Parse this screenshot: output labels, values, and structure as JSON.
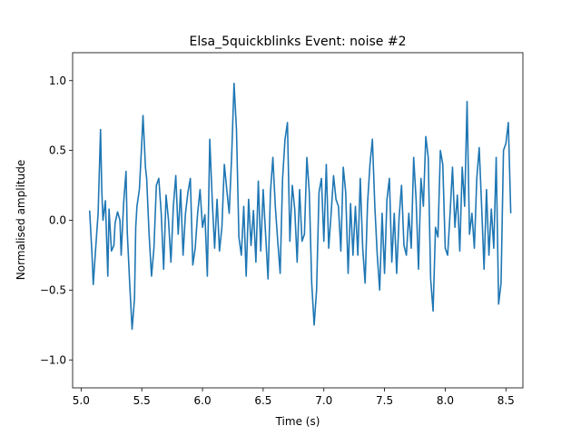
{
  "chart_data": {
    "type": "line",
    "title": "Elsa_5quickblinks Event: noise #2",
    "xlabel": "Time (s)",
    "ylabel": "Normalised amplitude",
    "xlim": [
      4.93,
      8.64
    ],
    "ylim": [
      -1.2,
      1.2
    ],
    "xticks": [
      5.0,
      5.5,
      6.0,
      6.5,
      7.0,
      7.5,
      8.0,
      8.5
    ],
    "xtick_labels": [
      "5.0",
      "5.5",
      "6.0",
      "6.5",
      "7.0",
      "7.5",
      "8.0",
      "8.5"
    ],
    "yticks": [
      -1.0,
      -0.5,
      0.0,
      0.5,
      1.0
    ],
    "ytick_labels": [
      "−1.0",
      "−0.5",
      "0.0",
      "0.5",
      "1.0"
    ],
    "grid": false,
    "series": [
      {
        "color": "#1f77b4",
        "x": [
          5.07,
          5.09,
          5.1,
          5.12,
          5.14,
          5.16,
          5.17,
          5.18,
          5.2,
          5.22,
          5.23,
          5.25,
          5.27,
          5.28,
          5.3,
          5.32,
          5.33,
          5.35,
          5.37,
          5.38,
          5.4,
          5.42,
          5.44,
          5.45,
          5.46,
          5.48,
          5.5,
          5.51,
          5.53,
          5.54,
          5.56,
          5.58,
          5.6,
          5.62,
          5.64,
          5.66,
          5.68,
          5.7,
          5.72,
          5.74,
          5.76,
          5.78,
          5.8,
          5.82,
          5.84,
          5.86,
          5.88,
          5.9,
          5.92,
          5.94,
          5.96,
          5.98,
          6.0,
          6.02,
          6.04,
          6.06,
          6.08,
          6.1,
          6.12,
          6.14,
          6.16,
          6.18,
          6.2,
          6.22,
          6.24,
          6.26,
          6.28,
          6.3,
          6.32,
          6.34,
          6.36,
          6.38,
          6.4,
          6.42,
          6.44,
          6.46,
          6.48,
          6.5,
          6.52,
          6.54,
          6.56,
          6.58,
          6.6,
          6.62,
          6.64,
          6.66,
          6.68,
          6.7,
          6.72,
          6.74,
          6.76,
          6.78,
          6.8,
          6.82,
          6.84,
          6.86,
          6.88,
          6.9,
          6.92,
          6.94,
          6.96,
          6.98,
          7.0,
          7.02,
          7.04,
          7.06,
          7.08,
          7.1,
          7.12,
          7.14,
          7.16,
          7.18,
          7.2,
          7.22,
          7.24,
          7.26,
          7.28,
          7.3,
          7.32,
          7.34,
          7.36,
          7.38,
          7.4,
          7.42,
          7.44,
          7.46,
          7.48,
          7.5,
          7.52,
          7.54,
          7.56,
          7.58,
          7.6,
          7.62,
          7.64,
          7.66,
          7.68,
          7.7,
          7.72,
          7.74,
          7.76,
          7.78,
          7.8,
          7.82,
          7.84,
          7.86,
          7.88,
          7.9,
          7.92,
          7.94,
          7.96,
          7.98,
          8.0,
          8.02,
          8.04,
          8.06,
          8.08,
          8.1,
          8.12,
          8.14,
          8.16,
          8.18,
          8.2,
          8.22,
          8.24,
          8.26,
          8.28,
          8.3,
          8.32,
          8.34,
          8.36,
          8.38,
          8.4,
          8.42,
          8.44,
          8.46,
          8.48,
          8.5,
          8.52,
          8.54
        ],
        "y": [
          0.07,
          -0.25,
          -0.46,
          -0.2,
          0.05,
          0.65,
          0.22,
          0.0,
          0.14,
          -0.4,
          0.08,
          -0.22,
          -0.18,
          -0.02,
          0.06,
          0.0,
          -0.25,
          0.12,
          0.35,
          -0.08,
          -0.45,
          -0.78,
          -0.56,
          -0.05,
          0.1,
          0.22,
          0.56,
          0.75,
          0.38,
          0.3,
          -0.1,
          -0.4,
          -0.2,
          0.25,
          0.3,
          0.05,
          -0.35,
          0.18,
          0.0,
          -0.3,
          0.1,
          0.32,
          -0.1,
          0.22,
          -0.25,
          0.05,
          0.2,
          0.3,
          -0.32,
          -0.2,
          0.05,
          0.22,
          -0.05,
          0.04,
          -0.4,
          0.58,
          0.15,
          -0.2,
          0.15,
          -0.22,
          -0.05,
          0.4,
          0.22,
          0.05,
          0.45,
          0.98,
          0.65,
          -0.12,
          -0.25,
          0.1,
          -0.4,
          0.15,
          -0.18,
          0.07,
          -0.3,
          0.28,
          -0.22,
          0.22,
          -0.1,
          -0.42,
          0.2,
          0.45,
          0.1,
          -0.15,
          -0.38,
          0.3,
          0.58,
          0.7,
          -0.15,
          0.25,
          0.08,
          -0.3,
          0.22,
          -0.15,
          -0.1,
          0.45,
          0.2,
          -0.45,
          -0.75,
          -0.5,
          0.2,
          0.3,
          -0.15,
          0.4,
          -0.2,
          0.05,
          0.32,
          0.15,
          0.1,
          -0.22,
          0.38,
          0.2,
          -0.38,
          0.12,
          -0.25,
          0.1,
          -0.25,
          0.3,
          -0.2,
          -0.45,
          0.12,
          0.4,
          0.58,
          0.1,
          -0.25,
          -0.5,
          0.05,
          -0.38,
          0.15,
          0.3,
          -0.3,
          0.05,
          -0.38,
          0.02,
          0.25,
          -0.18,
          -0.25,
          0.05,
          -0.2,
          0.45,
          0.15,
          -0.35,
          0.3,
          0.1,
          0.6,
          0.45,
          -0.42,
          -0.65,
          -0.05,
          -0.12,
          0.5,
          0.4,
          -0.2,
          -0.25,
          0.05,
          0.38,
          -0.05,
          0.18,
          -0.22,
          0.38,
          0.1,
          0.85,
          -0.1,
          0.05,
          -0.2,
          0.3,
          0.52,
          0.1,
          -0.35,
          0.22,
          -0.25,
          0.08,
          -0.2,
          0.45,
          -0.6,
          -0.45,
          0.5,
          0.55,
          0.7,
          0.05
        ]
      }
    ]
  }
}
